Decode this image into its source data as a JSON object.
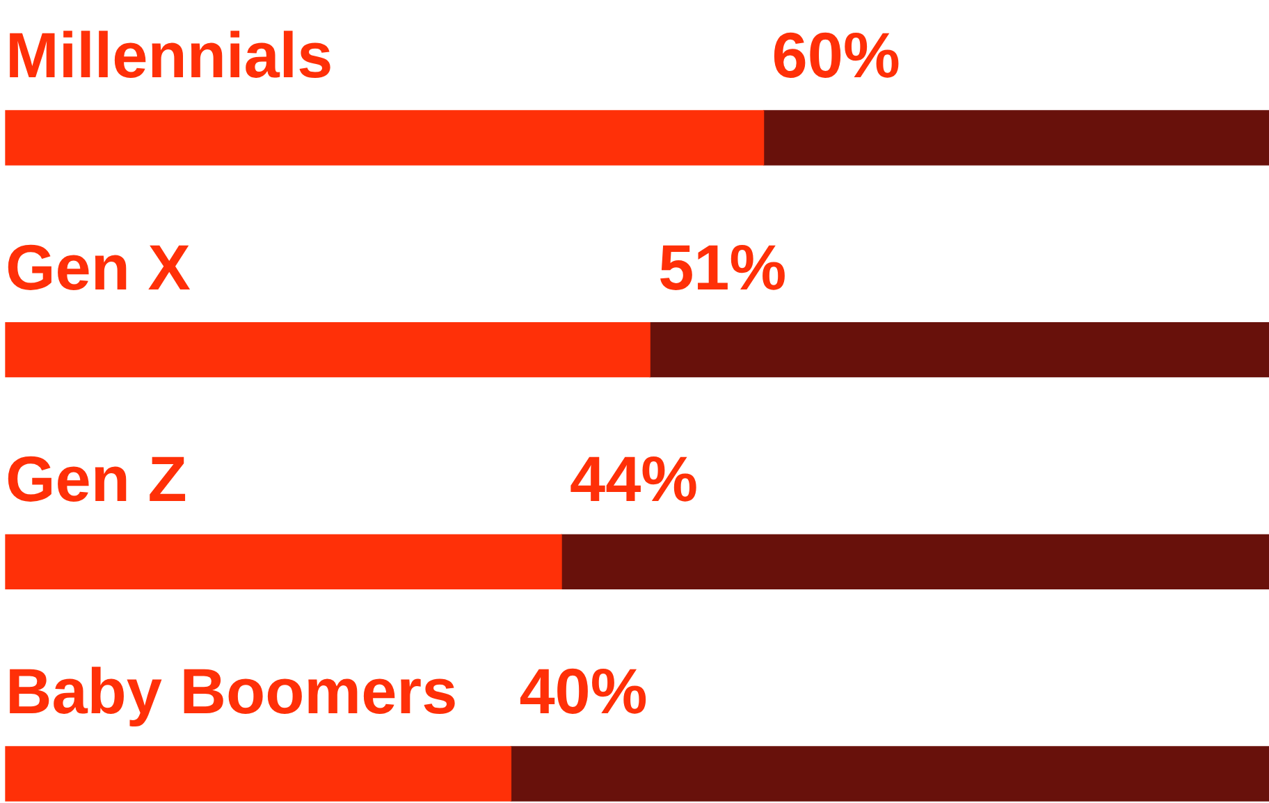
{
  "chart_data": {
    "type": "bar",
    "orientation": "horizontal",
    "stacked": true,
    "categories": [
      "Millennials",
      "Gen X",
      "Gen Z",
      "Baby Boomers"
    ],
    "xlim": [
      0,
      100
    ],
    "tick_labels": false,
    "grid": false,
    "legend": false,
    "series": [
      {
        "color": "#ff3008",
        "values": [
          60,
          51,
          44,
          40
        ],
        "value_labels": [
          "60%",
          "51%",
          "44%",
          "40%"
        ]
      },
      {
        "color": "#68110b",
        "values": [
          40,
          49,
          56,
          60
        ]
      }
    ]
  }
}
